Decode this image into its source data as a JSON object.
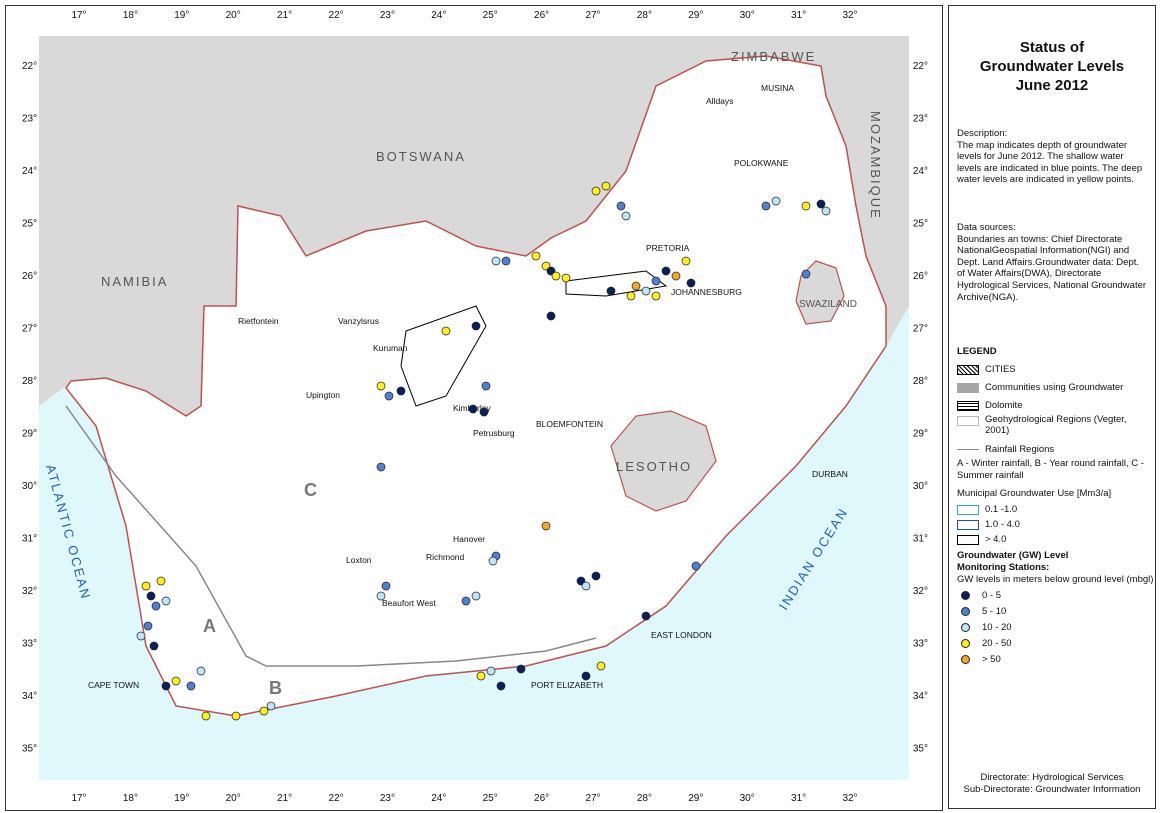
{
  "title": "Status of Groundwater Levels June 2012",
  "title_lines": [
    "Status of",
    "Groundwater Levels",
    "June 2012"
  ],
  "description": {
    "heading": "Description:",
    "text": "The map indicates depth of groundwater levels for June 2012. The shallow water levels are indicated in blue points. The deep water levels are indicated in yellow points."
  },
  "data_sources": {
    "heading": "Data sources:",
    "text": "Boundaries an towns: Chief Directorate NationalGeospatial Information(NGI) and Dept. Land Affairs.Groundwater data: Dept. of Water Affairs(DWA), Directorate Hydrological Services, National Groundwater Archive(NGA)."
  },
  "legend": {
    "heading": "LEGEND",
    "cities": "CITIES",
    "communities": "Communities using Groundwater",
    "dolomite": "Dolomite",
    "geohydro": "Geohydrological Regions (Vegter, 2001)",
    "rainfall": "Rainfall Regions",
    "rainfall_key": "A - Winter rainfall, B - Year round rainfall, C - Summer rainfall",
    "municipal_heading": "Municipal Groundwater Use [Mm3/a]",
    "municipal_items": [
      {
        "label": "0.1 -1.0",
        "color": "#29a8e0"
      },
      {
        "label": "1.0 - 4.0",
        "color": "#1c4fbf"
      },
      {
        "label": "> 4.0",
        "color": "#000000"
      }
    ],
    "gw_heading_1": "Groundwater (GW) Level",
    "gw_heading_2": "Monitoring Stations:",
    "gw_sub": "GW levels in meters below ground level (mbgl)",
    "gw_items": [
      {
        "label": "0 - 5",
        "color": "#0b1f5c"
      },
      {
        "label": "5 - 10",
        "color": "#4f7fd6"
      },
      {
        "label": "10 - 20",
        "color": "#bfe3f7"
      },
      {
        "label": "20 - 50",
        "color": "#ffef1a"
      },
      {
        "label": "> 50",
        "color": "#f5a623"
      }
    ]
  },
  "footer": {
    "line1": "Directorate: Hydrological Services",
    "line2": "Sub-Directorate: Groundwater Information"
  },
  "map": {
    "lon_ticks": [
      "17°",
      "18°",
      "19°",
      "20°",
      "21°",
      "22°",
      "23°",
      "24°",
      "25°",
      "26°",
      "27°",
      "28°",
      "29°",
      "30°",
      "31°",
      "32°"
    ],
    "lat_ticks": [
      "22°",
      "23°",
      "24°",
      "25°",
      "26°",
      "27°",
      "28°",
      "29°",
      "30°",
      "31°",
      "32°",
      "33°",
      "34°",
      "35°"
    ],
    "countries": [
      "ZIMBABWE",
      "BOTSWANA",
      "NAMIBIA",
      "MOZAMBIQUE",
      "SWAZILAND",
      "LESOTHO"
    ],
    "oceans": [
      "ATLANTIC OCEAN",
      "INDIAN OCEAN"
    ],
    "regions": [
      "A",
      "B",
      "C"
    ],
    "towns": [
      "Alldays",
      "MUSINA",
      "POLOKWANE",
      "PRETORIA",
      "JOHANNESBURG",
      "Rietfontein",
      "Vanzylsrus",
      "Kuruman",
      "Upington",
      "Kimberley",
      "Petrusburg",
      "BLOEMFONTEIN",
      "DURBAN",
      "Hanover",
      "Richmond",
      "Loxton",
      "Beaufort West",
      "EAST LONDON",
      "PORT ELIZABETH",
      "CAPE TOWN"
    ],
    "colors": {
      "land": "#ffffff",
      "neighbour": "#d9d9d9",
      "ocean": "#dff8fb",
      "border": "#c0504d"
    }
  }
}
